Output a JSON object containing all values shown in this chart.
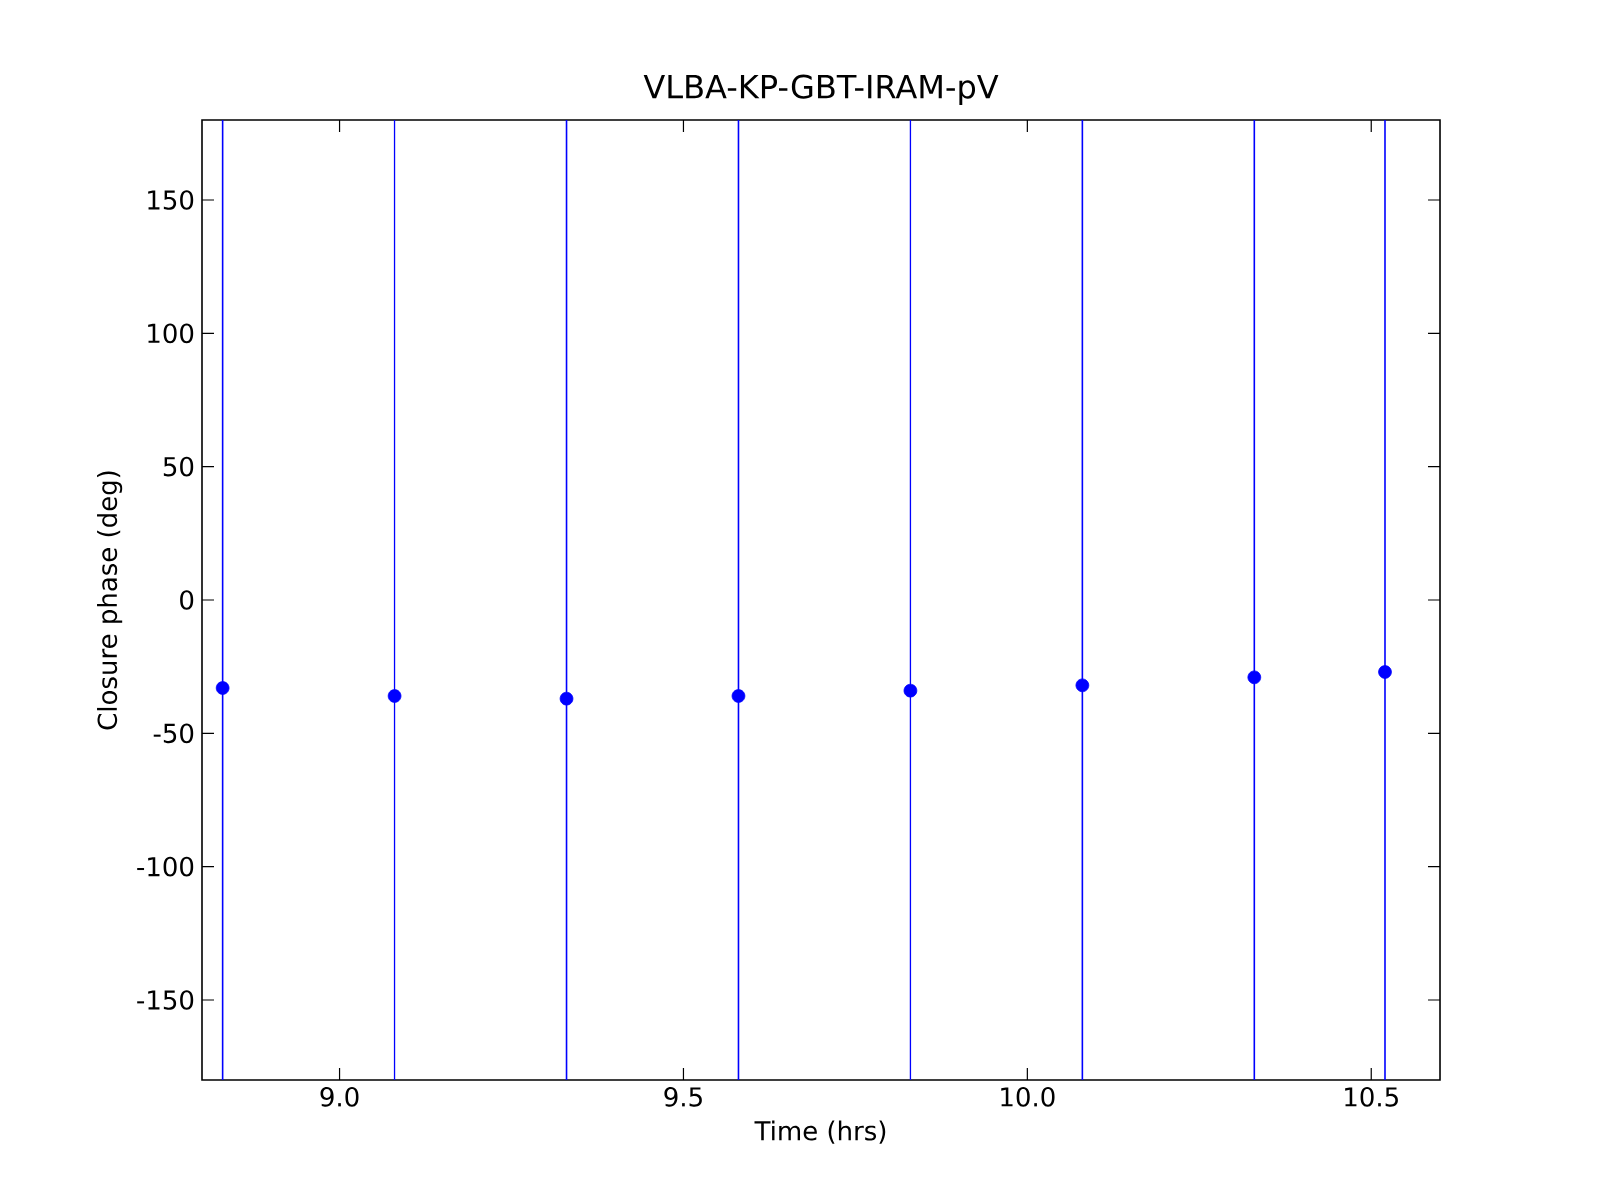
{
  "chart_data": {
    "type": "scatter",
    "title": "VLBA-KP-GBT-IRAM-pV",
    "xlabel": "Time (hrs)",
    "ylabel": "Closure phase (deg)",
    "x": [
      8.83,
      9.08,
      9.33,
      9.58,
      9.83,
      10.08,
      10.33,
      10.52
    ],
    "series": [
      {
        "color": "#0000ff",
        "values": [
          -33,
          -36,
          -37,
          -36,
          -34,
          -32,
          -29,
          -27
        ],
        "errors": [
          [
            -180,
            180
          ],
          [
            -180,
            180
          ],
          [
            -180,
            180
          ],
          [
            -180,
            180
          ],
          [
            -180,
            180
          ],
          [
            -180,
            180
          ],
          [
            -180,
            180
          ],
          [
            -180,
            180
          ]
        ]
      }
    ],
    "xlim": [
      8.8,
      10.6
    ],
    "ylim": [
      -180,
      180
    ],
    "xticks": [
      {
        "value": 9,
        "label": "9.0"
      },
      9.5,
      {
        "value": 10,
        "label": "10.0"
      },
      10.5
    ],
    "yticks": [
      -150,
      -100,
      -50,
      0,
      50,
      100,
      150
    ],
    "marker": "circle",
    "grid": false
  }
}
